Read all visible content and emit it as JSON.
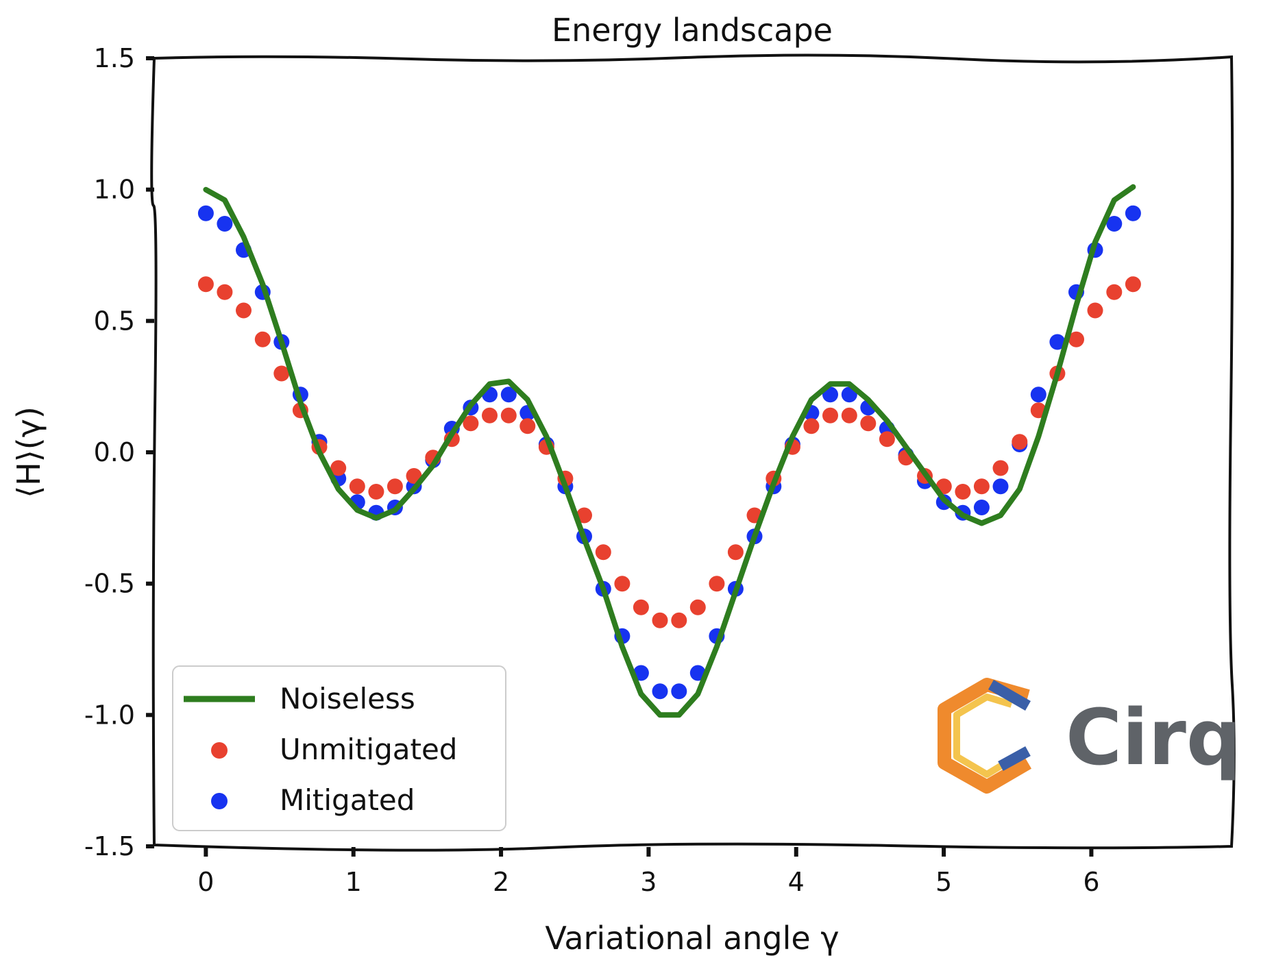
{
  "chart_data": {
    "type": "scatter",
    "title": "Energy landscape",
    "xlabel": "Variational angle γ",
    "ylabel": "⟨H⟩(γ)",
    "xlim": [
      -0.35,
      6.95
    ],
    "ylim": [
      -1.5,
      1.5
    ],
    "x_ticks": [
      "0",
      "1",
      "2",
      "3",
      "4",
      "5",
      "6"
    ],
    "y_ticks": [
      "1.5",
      "1.0",
      "0.5",
      "0.0",
      "-0.5",
      "-1.0",
      "-1.5"
    ],
    "grid": false,
    "legend_position": "lower-left",
    "series": [
      {
        "name": "Noiseless",
        "kind": "line",
        "color": "#2e7d1f",
        "x": [
          0,
          0.128,
          0.256,
          0.385,
          0.513,
          0.641,
          0.769,
          0.898,
          1.026,
          1.154,
          1.282,
          1.41,
          1.539,
          1.667,
          1.795,
          1.923,
          2.052,
          2.18,
          2.308,
          2.436,
          2.564,
          2.693,
          2.821,
          2.949,
          3.077,
          3.206,
          3.334,
          3.462,
          3.59,
          3.718,
          3.847,
          3.975,
          4.103,
          4.231,
          4.36,
          4.488,
          4.616,
          4.744,
          4.872,
          5.001,
          5.129,
          5.257,
          5.385,
          5.514,
          5.642,
          5.77,
          5.898,
          6.026,
          6.155,
          6.283
        ],
        "y": [
          1.0,
          0.96,
          0.82,
          0.64,
          0.42,
          0.19,
          0.0,
          -0.14,
          -0.22,
          -0.25,
          -0.22,
          -0.14,
          -0.05,
          0.07,
          0.18,
          0.26,
          0.27,
          0.2,
          0.06,
          -0.13,
          -0.33,
          -0.52,
          -0.74,
          -0.92,
          -1.0,
          -1.0,
          -0.92,
          -0.74,
          -0.53,
          -0.32,
          -0.12,
          0.06,
          0.2,
          0.26,
          0.26,
          0.2,
          0.12,
          0.02,
          -0.08,
          -0.18,
          -0.24,
          -0.27,
          -0.24,
          -0.14,
          0.06,
          0.3,
          0.56,
          0.8,
          0.96,
          1.01
        ]
      },
      {
        "name": "Unmitigated",
        "kind": "scatter",
        "color": "#e8412f",
        "x": [
          0,
          0.128,
          0.256,
          0.385,
          0.513,
          0.641,
          0.769,
          0.898,
          1.026,
          1.154,
          1.282,
          1.41,
          1.539,
          1.667,
          1.795,
          1.923,
          2.052,
          2.18,
          2.308,
          2.436,
          2.564,
          2.693,
          2.821,
          2.949,
          3.077,
          3.206,
          3.334,
          3.462,
          3.59,
          3.718,
          3.847,
          3.975,
          4.103,
          4.231,
          4.36,
          4.488,
          4.616,
          4.744,
          4.872,
          5.001,
          5.129,
          5.257,
          5.385,
          5.514,
          5.642,
          5.77,
          5.898,
          6.026,
          6.155,
          6.283
        ],
        "y": [
          0.64,
          0.61,
          0.54,
          0.43,
          0.3,
          0.16,
          0.02,
          -0.06,
          -0.13,
          -0.15,
          -0.13,
          -0.09,
          -0.02,
          0.05,
          0.11,
          0.14,
          0.14,
          0.1,
          0.02,
          -0.1,
          -0.24,
          -0.38,
          -0.5,
          -0.59,
          -0.64,
          -0.64,
          -0.59,
          -0.5,
          -0.38,
          -0.24,
          -0.1,
          0.02,
          0.1,
          0.14,
          0.14,
          0.11,
          0.05,
          -0.02,
          -0.09,
          -0.13,
          -0.15,
          -0.13,
          -0.06,
          0.04,
          0.16,
          0.3,
          0.43,
          0.54,
          0.61,
          0.64
        ]
      },
      {
        "name": "Mitigated",
        "kind": "scatter",
        "color": "#1733f0",
        "x": [
          0,
          0.128,
          0.256,
          0.385,
          0.513,
          0.641,
          0.769,
          0.898,
          1.026,
          1.154,
          1.282,
          1.41,
          1.539,
          1.667,
          1.795,
          1.923,
          2.052,
          2.18,
          2.308,
          2.436,
          2.564,
          2.693,
          2.821,
          2.949,
          3.077,
          3.206,
          3.334,
          3.462,
          3.59,
          3.718,
          3.847,
          3.975,
          4.103,
          4.231,
          4.36,
          4.488,
          4.616,
          4.744,
          4.872,
          5.001,
          5.129,
          5.257,
          5.385,
          5.514,
          5.642,
          5.77,
          5.898,
          6.026,
          6.155,
          6.283
        ],
        "y": [
          0.91,
          0.87,
          0.77,
          0.61,
          0.42,
          0.22,
          0.04,
          -0.1,
          -0.19,
          -0.23,
          -0.21,
          -0.13,
          -0.03,
          0.09,
          0.17,
          0.22,
          0.22,
          0.15,
          0.03,
          -0.13,
          -0.32,
          -0.52,
          -0.7,
          -0.84,
          -0.91,
          -0.91,
          -0.84,
          -0.7,
          -0.52,
          -0.32,
          -0.13,
          0.03,
          0.15,
          0.22,
          0.22,
          0.17,
          0.09,
          -0.01,
          -0.11,
          -0.19,
          -0.23,
          -0.21,
          -0.13,
          0.03,
          0.22,
          0.42,
          0.61,
          0.77,
          0.87,
          0.91
        ]
      }
    ]
  },
  "logo": {
    "text": "Cirq",
    "colors": [
      "#ef8a2d",
      "#f4c44e",
      "#3a5fa8"
    ]
  }
}
